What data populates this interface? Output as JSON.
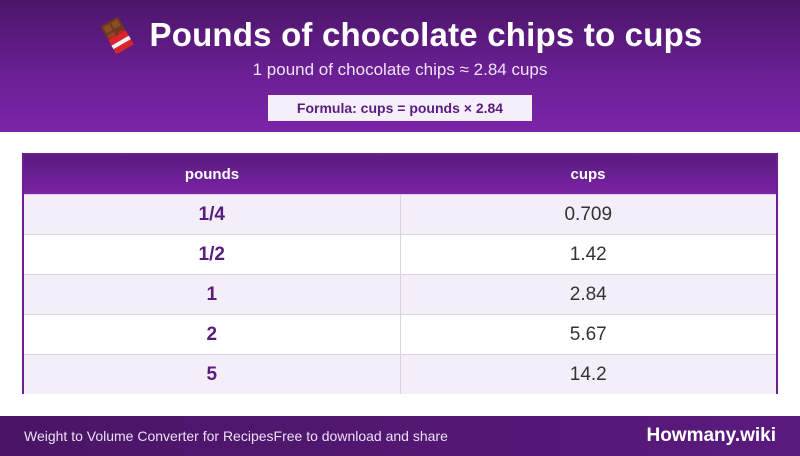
{
  "header": {
    "icon": "chocolate-bar-icon",
    "title": "Pounds of chocolate chips to cups",
    "subtitle": "1 pound of chocolate chips ≈ 2.84 cups",
    "formula": "Formula: cups = pounds × 2.84"
  },
  "table": {
    "columns": [
      "pounds",
      "cups"
    ],
    "rows": [
      {
        "pounds": "1/4",
        "cups": "0.709"
      },
      {
        "pounds": "1/2",
        "cups": "1.42"
      },
      {
        "pounds": "1",
        "cups": "2.84"
      },
      {
        "pounds": "2",
        "cups": "5.67"
      },
      {
        "pounds": "5",
        "cups": "14.2"
      }
    ]
  },
  "footer": {
    "left_text": "Weight to Volume Converter for Recipes",
    "left_subtext": "Free to download and share",
    "brand": "Howmany.wiki"
  },
  "colors": {
    "primary": "#6a1f93",
    "dark": "#4b1668",
    "row_alt": "#f4eef9"
  }
}
